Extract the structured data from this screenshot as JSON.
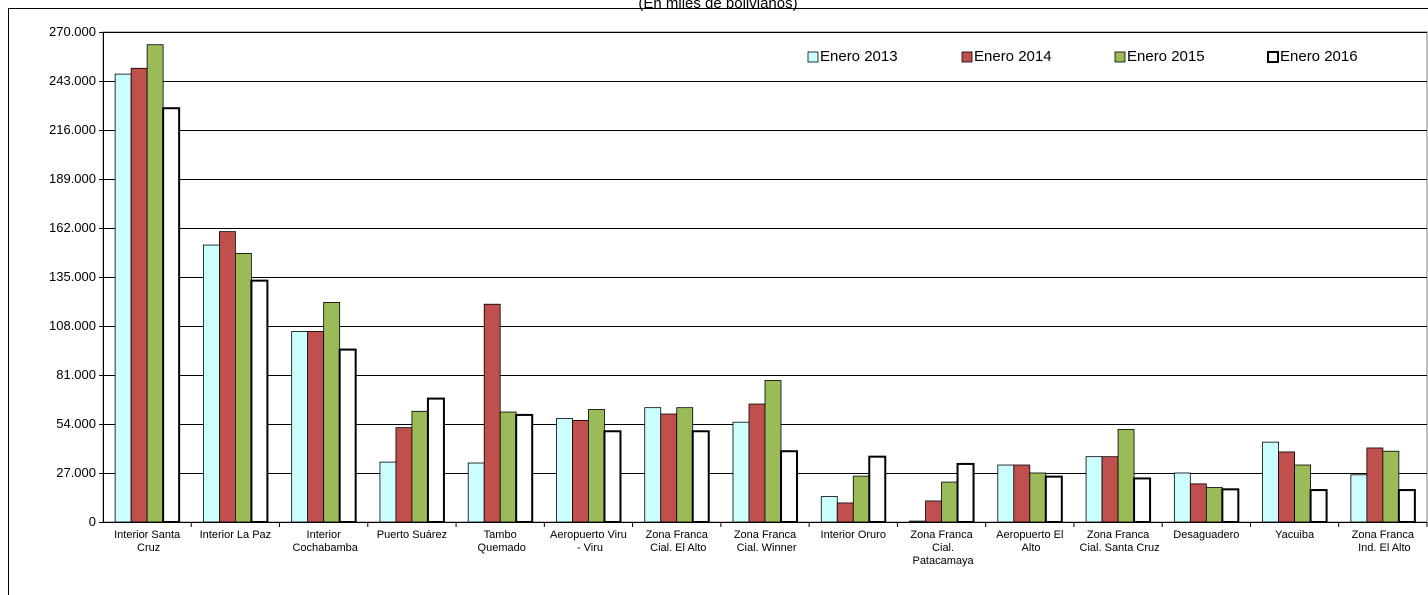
{
  "chart_data": {
    "type": "bar",
    "subtitle": "(En miles de bolivianos)",
    "categories": [
      "Interior Santa Cruz",
      "Interior La Paz",
      "Interior Cochabamba",
      "Puerto Suárez",
      "Tambo Quemado",
      "Aeropuerto Viru - Viru",
      "Zona Franca Cial. El Alto",
      "Zona Franca Cial. Winner",
      "Interior Oruro",
      "Zona Franca Cial. Patacamaya",
      "Aeropuerto El Alto",
      "Zona Franca Cial. Santa Cruz",
      "Desaguadero",
      "Yacuiba",
      "Zona Franca Ind. El Alto"
    ],
    "series": [
      {
        "name": "Enero 2013",
        "color": "#ccffff",
        "values": [
          246800,
          152600,
          105000,
          33000,
          32500,
          57000,
          63000,
          55000,
          14000,
          500,
          31400,
          36000,
          27000,
          44000,
          26000
        ]
      },
      {
        "name": "Enero 2014",
        "color": "#c0504d",
        "values": [
          250000,
          160000,
          105000,
          52000,
          120000,
          56000,
          59500,
          65000,
          10500,
          11600,
          31400,
          36000,
          21000,
          38600,
          40800
        ]
      },
      {
        "name": "Enero 2015",
        "color": "#9bbb59",
        "values": [
          263000,
          148000,
          121000,
          61000,
          60600,
          62000,
          63000,
          78000,
          25300,
          22000,
          27000,
          51000,
          19000,
          31400,
          39000
        ]
      },
      {
        "name": "Enero 2016",
        "color": "#ffffff",
        "values": [
          228000,
          133000,
          95000,
          68000,
          59000,
          50000,
          50000,
          39000,
          36000,
          32000,
          25000,
          24000,
          18000,
          17600,
          17600
        ]
      }
    ],
    "ylim": [
      0,
      270000
    ],
    "yticks": [
      0,
      {
        "value": 27000,
        "label": "27.000"
      },
      {
        "value": 54000,
        "label": "54.000"
      },
      {
        "value": 81000,
        "label": "81.000"
      },
      {
        "value": 108000,
        "label": "108.000"
      },
      {
        "value": 135000,
        "label": "135.000"
      },
      {
        "value": 162000,
        "label": "162.000"
      },
      {
        "value": 189000,
        "label": "189.000"
      },
      {
        "value": 216000,
        "label": "216.000"
      },
      {
        "value": 243000,
        "label": "243.000"
      },
      {
        "value": 270000,
        "label": "270.000"
      }
    ],
    "grid": true,
    "legend": "top-right"
  }
}
